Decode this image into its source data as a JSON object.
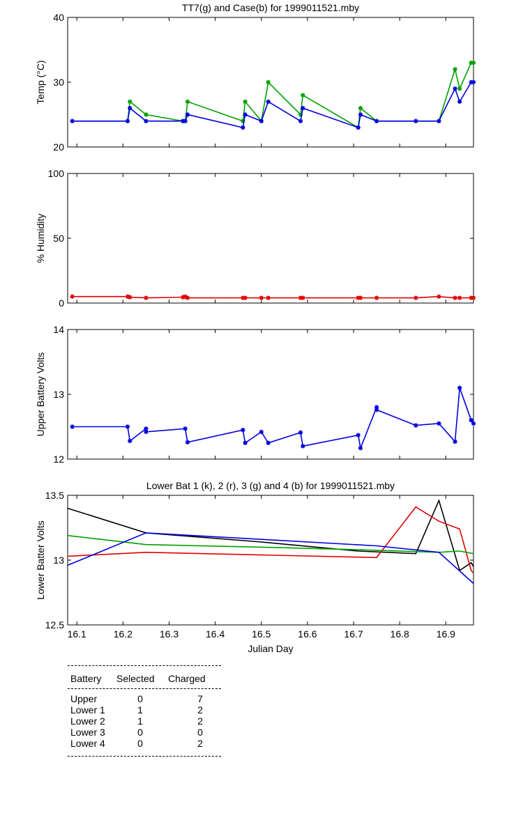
{
  "chart_data": [
    {
      "type": "line",
      "title": "TT7(g) and Case(b) for 1999011521.mby",
      "ylabel": "Temp  (°C)",
      "xlabel": "",
      "xlim": [
        16.08,
        16.96
      ],
      "ylim": [
        20,
        40
      ],
      "yticks": [
        20,
        30,
        40
      ],
      "series": [
        {
          "color": "#00a000",
          "marker": "*",
          "points": [
            [
              16.09,
              24
            ],
            [
              16.21,
              24
            ],
            [
              16.215,
              27
            ],
            [
              16.25,
              25
            ],
            [
              16.33,
              24
            ],
            [
              16.335,
              24
            ],
            [
              16.34,
              27
            ],
            [
              16.46,
              24
            ],
            [
              16.465,
              27
            ],
            [
              16.5,
              24
            ],
            [
              16.515,
              30
            ],
            [
              16.585,
              25
            ],
            [
              16.59,
              28
            ],
            [
              16.71,
              23
            ],
            [
              16.715,
              26
            ],
            [
              16.75,
              24
            ],
            [
              16.835,
              24
            ],
            [
              16.885,
              24
            ],
            [
              16.92,
              32
            ],
            [
              16.93,
              29
            ],
            [
              16.955,
              33
            ],
            [
              16.96,
              33
            ]
          ]
        },
        {
          "color": "#0000e0",
          "marker": "*",
          "points": [
            [
              16.09,
              24
            ],
            [
              16.21,
              24
            ],
            [
              16.215,
              26
            ],
            [
              16.25,
              24
            ],
            [
              16.33,
              24
            ],
            [
              16.335,
              24
            ],
            [
              16.34,
              25
            ],
            [
              16.46,
              23
            ],
            [
              16.465,
              25
            ],
            [
              16.5,
              24
            ],
            [
              16.515,
              27
            ],
            [
              16.585,
              24
            ],
            [
              16.59,
              26
            ],
            [
              16.71,
              23
            ],
            [
              16.715,
              25
            ],
            [
              16.75,
              24
            ],
            [
              16.835,
              24
            ],
            [
              16.885,
              24
            ],
            [
              16.92,
              29
            ],
            [
              16.93,
              27
            ],
            [
              16.955,
              30
            ],
            [
              16.96,
              30
            ]
          ]
        }
      ]
    },
    {
      "type": "line",
      "title": "",
      "ylabel": "% Humidity",
      "xlabel": "",
      "xlim": [
        16.08,
        16.96
      ],
      "ylim": [
        0,
        100
      ],
      "yticks": [
        0,
        50,
        100
      ],
      "series": [
        {
          "color": "#e00000",
          "marker": "*",
          "points": [
            [
              16.09,
              5
            ],
            [
              16.21,
              5
            ],
            [
              16.215,
              4.5
            ],
            [
              16.25,
              4
            ],
            [
              16.33,
              4.5
            ],
            [
              16.335,
              5
            ],
            [
              16.34,
              4
            ],
            [
              16.46,
              4
            ],
            [
              16.465,
              4
            ],
            [
              16.5,
              4
            ],
            [
              16.515,
              4
            ],
            [
              16.585,
              4
            ],
            [
              16.59,
              4
            ],
            [
              16.71,
              4
            ],
            [
              16.715,
              4
            ],
            [
              16.75,
              4
            ],
            [
              16.835,
              4
            ],
            [
              16.885,
              5
            ],
            [
              16.92,
              4
            ],
            [
              16.93,
              4
            ],
            [
              16.955,
              4
            ],
            [
              16.96,
              4
            ]
          ]
        }
      ]
    },
    {
      "type": "line",
      "title": "",
      "ylabel": "Upper Battery Volts",
      "xlabel": "",
      "xlim": [
        16.08,
        16.96
      ],
      "ylim": [
        12,
        14
      ],
      "yticks": [
        12,
        13,
        14
      ],
      "series": [
        {
          "color": "#0000e0",
          "marker": "*",
          "points": [
            [
              16.09,
              12.5
            ],
            [
              16.21,
              12.5
            ],
            [
              16.215,
              12.28
            ],
            [
              16.25,
              12.47
            ],
            [
              16.25,
              12.42
            ],
            [
              16.335,
              12.47
            ],
            [
              16.34,
              12.26
            ],
            [
              16.46,
              12.45
            ],
            [
              16.465,
              12.25
            ],
            [
              16.5,
              12.42
            ],
            [
              16.515,
              12.25
            ],
            [
              16.585,
              12.41
            ],
            [
              16.59,
              12.2
            ],
            [
              16.71,
              12.37
            ],
            [
              16.715,
              12.17
            ],
            [
              16.75,
              12.8
            ],
            [
              16.75,
              12.76
            ],
            [
              16.835,
              12.52
            ],
            [
              16.885,
              12.55
            ],
            [
              16.92,
              12.27
            ],
            [
              16.93,
              13.1
            ],
            [
              16.955,
              12.6
            ],
            [
              16.96,
              12.55
            ]
          ]
        }
      ]
    },
    {
      "type": "line",
      "title": "Lower Bat 1 (k), 2 (r), 3 (g) and 4 (b) for 1999011521.mby",
      "ylabel": "Lower Batter Volts",
      "xlabel": "Julian Day",
      "xlim": [
        16.08,
        16.96
      ],
      "ylim": [
        12.5,
        13.5
      ],
      "yticks": [
        12.5,
        13,
        13.5
      ],
      "xticks": [
        16.1,
        16.2,
        16.3,
        16.4,
        16.5,
        16.6,
        16.7,
        16.8,
        16.9
      ],
      "series": [
        {
          "color": "#000000",
          "points": [
            [
              16.08,
              13.4
            ],
            [
              16.25,
              13.21
            ],
            [
              16.5,
              13.14
            ],
            [
              16.71,
              13.07
            ],
            [
              16.835,
              13.05
            ],
            [
              16.885,
              13.46
            ],
            [
              16.93,
              12.92
            ],
            [
              16.955,
              12.98
            ],
            [
              16.96,
              12.95
            ]
          ]
        },
        {
          "color": "#e00000",
          "points": [
            [
              16.08,
              13.03
            ],
            [
              16.25,
              13.06
            ],
            [
              16.5,
              13.04
            ],
            [
              16.75,
              13.02
            ],
            [
              16.835,
              13.41
            ],
            [
              16.885,
              13.3
            ],
            [
              16.93,
              13.24
            ],
            [
              16.955,
              12.92
            ],
            [
              16.96,
              12.9
            ]
          ]
        },
        {
          "color": "#00a000",
          "points": [
            [
              16.08,
              13.19
            ],
            [
              16.25,
              13.12
            ],
            [
              16.5,
              13.1
            ],
            [
              16.71,
              13.08
            ],
            [
              16.885,
              13.06
            ],
            [
              16.93,
              13.07
            ],
            [
              16.96,
              13.05
            ]
          ]
        },
        {
          "color": "#0000e0",
          "points": [
            [
              16.08,
              12.96
            ],
            [
              16.25,
              13.21
            ],
            [
              16.5,
              13.16
            ],
            [
              16.75,
              13.11
            ],
            [
              16.885,
              13.06
            ],
            [
              16.96,
              12.82
            ]
          ]
        }
      ]
    }
  ],
  "battery_table": {
    "headers": [
      "Battery",
      "Selected",
      "Charged"
    ],
    "rows": [
      {
        "battery": "Upper",
        "selected": "0",
        "charged": "7"
      },
      {
        "battery": "Lower 1",
        "selected": "1",
        "charged": "2"
      },
      {
        "battery": "Lower 2",
        "selected": "1",
        "charged": "2"
      },
      {
        "battery": "Lower 3",
        "selected": "0",
        "charged": "0"
      },
      {
        "battery": "Lower 4",
        "selected": "0",
        "charged": "2"
      }
    ]
  }
}
